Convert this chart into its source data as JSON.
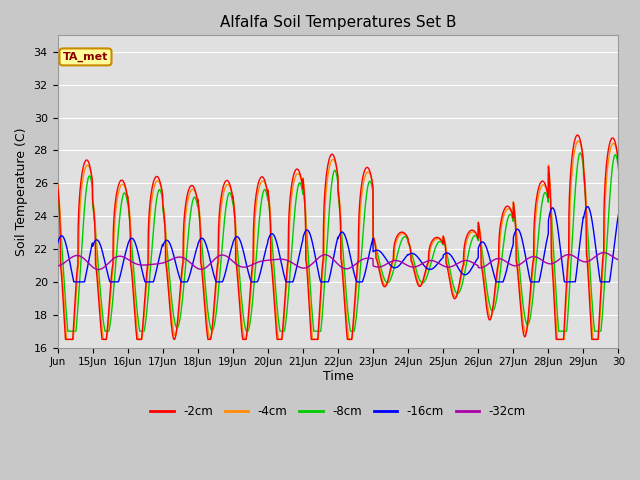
{
  "title": "Alfalfa Soil Temperatures Set B",
  "xlabel": "Time",
  "ylabel": "Soil Temperature (C)",
  "ylim": [
    16,
    35
  ],
  "xlim": [
    0,
    16
  ],
  "x_tick_labels": [
    "Jun",
    "15Jun",
    "16Jun",
    "17Jun",
    "18Jun",
    "19Jun",
    "20Jun",
    "21Jun",
    "22Jun",
    "23Jun",
    "24Jun",
    "25Jun",
    "26Jun",
    "27Jun",
    "28Jun",
    "29Jun",
    "30"
  ],
  "x_tick_positions": [
    0,
    1,
    2,
    3,
    4,
    5,
    6,
    7,
    8,
    9,
    10,
    11,
    12,
    13,
    14,
    15,
    16
  ],
  "y_tick_positions": [
    16,
    18,
    20,
    22,
    24,
    26,
    28,
    30,
    32,
    34
  ],
  "colors": {
    "2cm": "#FF0000",
    "4cm": "#FF8C00",
    "8cm": "#00CC00",
    "16cm": "#0000FF",
    "32cm": "#AA00AA"
  },
  "legend_labels": [
    "-2cm",
    "-4cm",
    "-8cm",
    "-16cm",
    "-32cm"
  ],
  "annotation_text": "TA_met",
  "annotation_bg": "#FFFF99",
  "annotation_border": "#CC8800",
  "fig_bg": "#C8C8C8",
  "plot_bg": "#E0E0E0",
  "grid_color": "#FFFFFF"
}
